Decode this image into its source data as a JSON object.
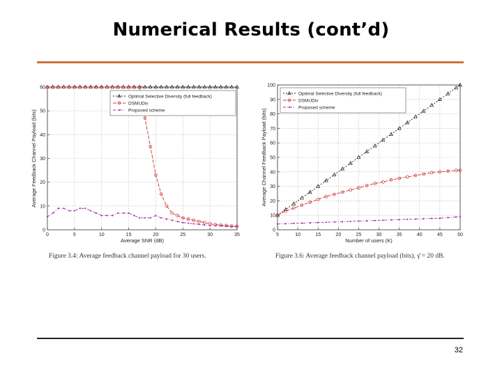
{
  "slide": {
    "title": "Numerical Results (cont’d)",
    "page_number": "32",
    "accent_color": "#c8743a"
  },
  "captions": {
    "left": "Figure 3.4: Average feedback channel payload for 30 users.",
    "right": "Figure 3.6: Average feedback channel payload (bits), γ̄ = 20 dB."
  },
  "colors": {
    "optimal": "#222222",
    "dsmuds": "#cc3333",
    "proposed": "#a030a0"
  },
  "chart_data": [
    {
      "type": "line",
      "xlabel": "Average SNR (dB)",
      "ylabel": "Average Feedback Channel Payload (bits)",
      "xlim": [
        0,
        35
      ],
      "ylim": [
        0,
        60
      ],
      "xticks": [
        0,
        5,
        10,
        15,
        20,
        25,
        30,
        35
      ],
      "yticks": [
        0,
        10,
        20,
        30,
        40,
        50,
        60
      ],
      "grid": true,
      "legend_position": "top-right",
      "series": [
        {
          "name": "Optimal Selective Diversity (full feedback)",
          "marker": "triangle",
          "x": [
            0,
            1,
            2,
            3,
            4,
            5,
            6,
            7,
            8,
            9,
            10,
            11,
            12,
            13,
            14,
            15,
            16,
            17,
            18,
            19,
            20,
            21,
            22,
            23,
            24,
            25,
            26,
            27,
            28,
            29,
            30,
            31,
            32,
            33,
            34,
            35
          ],
          "y": [
            60,
            60,
            60,
            60,
            60,
            60,
            60,
            60,
            60,
            60,
            60,
            60,
            60,
            60,
            60,
            60,
            60,
            60,
            60,
            60,
            60,
            60,
            60,
            60,
            60,
            60,
            60,
            60,
            60,
            60,
            60,
            60,
            60,
            60,
            60,
            60
          ]
        },
        {
          "name": "DSMUDiv",
          "marker": "circle",
          "x": [
            0,
            1,
            2,
            3,
            4,
            5,
            6,
            7,
            8,
            9,
            10,
            11,
            12,
            13,
            14,
            15,
            16,
            17,
            18,
            19,
            20,
            21,
            22,
            23,
            24,
            25,
            26,
            27,
            28,
            29,
            30,
            31,
            32,
            33,
            34,
            35
          ],
          "y": [
            60,
            60,
            60,
            60,
            60,
            60,
            60,
            60,
            60,
            60,
            60,
            60,
            60,
            60,
            60,
            60,
            60,
            60,
            47,
            35,
            23,
            15,
            10,
            7,
            6,
            5,
            4.5,
            4,
            3.5,
            3,
            2.5,
            2.2,
            2,
            1.8,
            1.6,
            1.5
          ]
        },
        {
          "name": "Proposed scheme",
          "marker": "dot",
          "x": [
            0,
            1,
            2,
            3,
            4,
            5,
            6,
            7,
            8,
            9,
            10,
            11,
            12,
            13,
            14,
            15,
            16,
            17,
            18,
            19,
            20,
            21,
            22,
            23,
            24,
            25,
            26,
            27,
            28,
            29,
            30,
            31,
            32,
            33,
            34,
            35
          ],
          "y": [
            5.5,
            7,
            9,
            9,
            8,
            8,
            9,
            9,
            8,
            7,
            6,
            6,
            6,
            7,
            7,
            7,
            6,
            5,
            5,
            5,
            6,
            5,
            4.5,
            4,
            3.5,
            3,
            2.8,
            2.5,
            2.3,
            2,
            1.8,
            1.7,
            1.6,
            1.5,
            1.4,
            1.3
          ]
        }
      ]
    },
    {
      "type": "line",
      "xlabel": "Number of users (K)",
      "ylabel": "Average Channel Feedback Payload (bits)",
      "xlim": [
        5,
        50
      ],
      "ylim": [
        0,
        100
      ],
      "xticks": [
        5,
        10,
        15,
        20,
        25,
        30,
        35,
        40,
        45,
        50
      ],
      "yticks": [
        0,
        10,
        20,
        30,
        40,
        50,
        60,
        70,
        80,
        90,
        100
      ],
      "grid": true,
      "legend_position": "top-left",
      "series": [
        {
          "name": "Optimal Selective Diversity (full feedback)",
          "marker": "triangle",
          "x": [
            5,
            7,
            9,
            11,
            13,
            15,
            17,
            19,
            21,
            23,
            25,
            27,
            29,
            31,
            33,
            35,
            37,
            39,
            41,
            43,
            45,
            47,
            49,
            50
          ],
          "y": [
            10,
            14,
            18,
            22,
            26,
            30,
            34,
            38,
            42,
            46,
            50,
            54,
            58,
            62,
            66,
            70,
            74,
            78,
            82,
            86,
            90,
            94,
            98,
            100
          ]
        },
        {
          "name": "DSMUDiv",
          "marker": "circle",
          "x": [
            5,
            7,
            9,
            11,
            13,
            15,
            17,
            19,
            21,
            23,
            25,
            27,
            29,
            31,
            33,
            35,
            37,
            39,
            41,
            43,
            45,
            47,
            49,
            50
          ],
          "y": [
            10,
            13,
            15,
            17,
            19,
            21,
            23,
            24.5,
            26,
            27.5,
            29,
            30.5,
            32,
            33,
            34.5,
            35.5,
            36.5,
            37.5,
            38.5,
            39.5,
            40,
            40.5,
            41,
            41
          ]
        },
        {
          "name": "Proposed scheme",
          "marker": "dot",
          "x": [
            5,
            7,
            9,
            11,
            13,
            15,
            17,
            19,
            21,
            23,
            25,
            27,
            29,
            31,
            33,
            35,
            37,
            39,
            41,
            43,
            45,
            47,
            49,
            50
          ],
          "y": [
            4,
            4.2,
            4.4,
            4.6,
            4.8,
            5,
            5.2,
            5.4,
            5.6,
            5.8,
            6,
            6.2,
            6.4,
            6.6,
            6.8,
            7,
            7.2,
            7.4,
            7.6,
            7.8,
            8,
            8.4,
            8.8,
            9
          ]
        }
      ]
    }
  ]
}
